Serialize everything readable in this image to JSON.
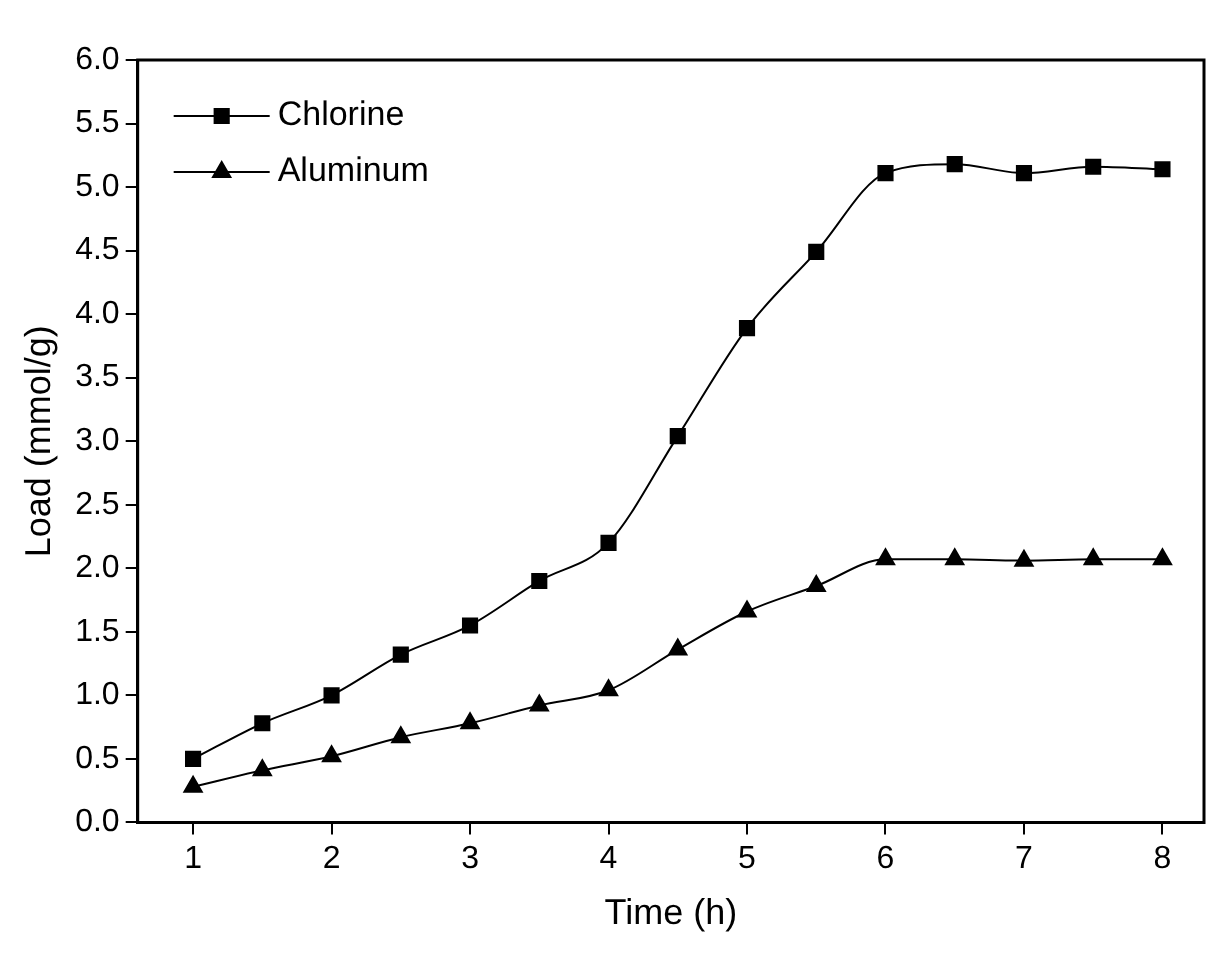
{
  "chart_data": {
    "type": "line",
    "xlabel": "Time (h)",
    "ylabel": "Load (mmol/g)",
    "x": [
      1,
      1.5,
      2,
      2.5,
      3,
      3.5,
      4,
      4.5,
      5,
      5.5,
      6,
      6.5,
      7,
      7.5,
      8
    ],
    "series": [
      {
        "name": "Chlorine",
        "color": "#000000",
        "marker": "square",
        "values": [
          0.5,
          0.78,
          1.0,
          1.32,
          1.55,
          1.9,
          2.2,
          3.04,
          3.89,
          4.49,
          5.11,
          5.18,
          5.11,
          5.16,
          5.14
        ]
      },
      {
        "name": "Aluminum",
        "color": "#000000",
        "marker": "triangle",
        "values": [
          0.28,
          0.41,
          0.52,
          0.67,
          0.78,
          0.92,
          1.04,
          1.36,
          1.66,
          1.86,
          2.07,
          2.07,
          2.06,
          2.07,
          2.07
        ]
      }
    ],
    "xlim": [
      0.6,
      8.3
    ],
    "xticks": [
      1,
      2,
      3,
      4,
      5,
      6,
      7,
      8
    ],
    "ylim": [
      0,
      6
    ],
    "yticks": [
      {
        "value": 0,
        "label": "0.0"
      },
      {
        "value": 0.5,
        "label": "0.5"
      },
      {
        "value": 1,
        "label": "1.0"
      },
      {
        "value": 1.5,
        "label": "1.5"
      },
      {
        "value": 2,
        "label": "2.0"
      },
      {
        "value": 2.5,
        "label": "2.5"
      },
      {
        "value": 3,
        "label": "3.0"
      },
      {
        "value": 3.5,
        "label": "3.5"
      },
      {
        "value": 4,
        "label": "4.0"
      },
      {
        "value": 4.5,
        "label": "4.5"
      },
      {
        "value": 5,
        "label": "5.0"
      },
      {
        "value": 5.5,
        "label": "5.5"
      },
      {
        "value": 6,
        "label": "6.0"
      }
    ],
    "grid": false,
    "legend": "top left",
    "line_style": "solid"
  }
}
